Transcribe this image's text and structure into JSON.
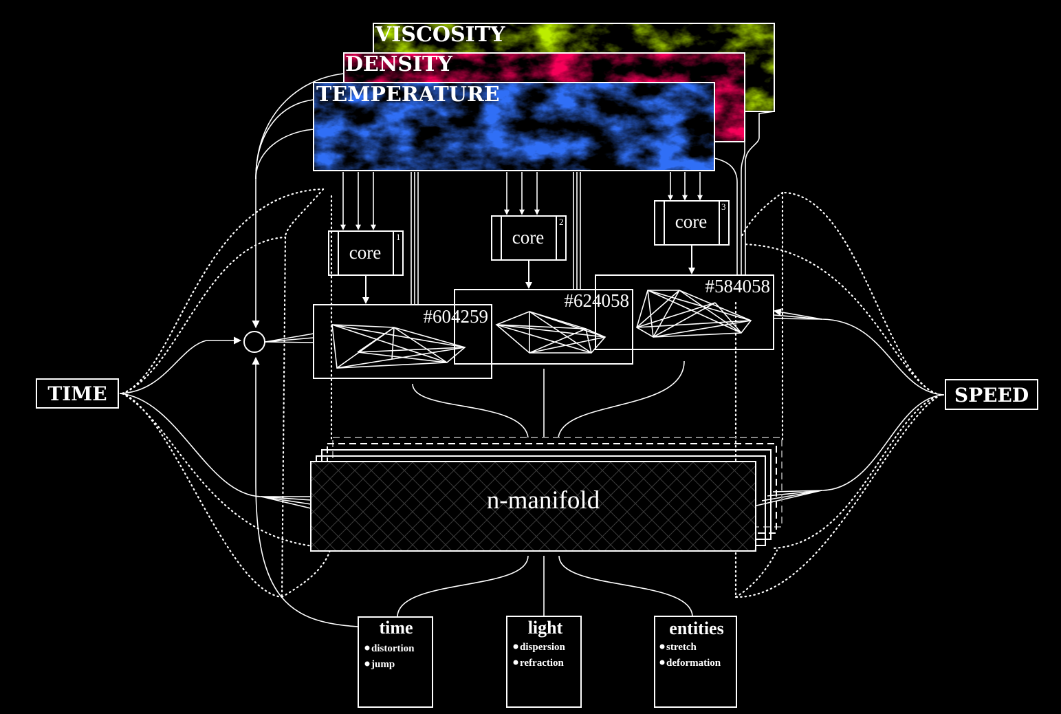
{
  "fields": {
    "viscosity": {
      "label": "VISCOSITY",
      "color": "#7fd000"
    },
    "density": {
      "label": "DENSITY",
      "color": "#e0001c"
    },
    "temperature": {
      "label": "TEMPERATURE",
      "color": "#0a2ae0"
    }
  },
  "cores": [
    {
      "label": "core",
      "index": "1"
    },
    {
      "label": "core",
      "index": "2"
    },
    {
      "label": "core",
      "index": "3"
    }
  ],
  "graphs": [
    {
      "id": "#604259"
    },
    {
      "id": "#624058"
    },
    {
      "id": "#584058"
    }
  ],
  "inputs": {
    "left": "TIME",
    "right": "SPEED"
  },
  "manifold": {
    "label": "n-manifold"
  },
  "outputs": [
    {
      "title": "time",
      "items": [
        "distortion",
        "jump"
      ]
    },
    {
      "title": "light",
      "items": [
        "dispersion",
        "refraction"
      ]
    },
    {
      "title": "entities",
      "items": [
        "stretch",
        "deformation"
      ]
    }
  ]
}
